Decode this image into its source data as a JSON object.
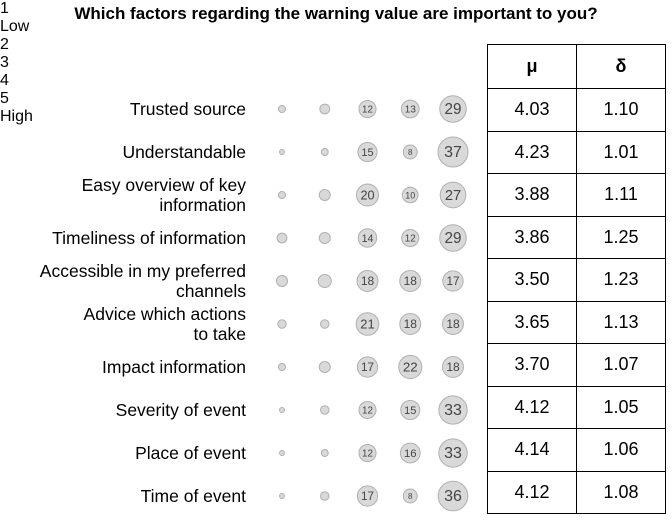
{
  "chart_data": {
    "type": "bubble",
    "title": "Which factors regarding the warning value are important to you?",
    "x": [
      1,
      2,
      3,
      4,
      5
    ],
    "x_sublabels": [
      "Low",
      null,
      null,
      null,
      "High"
    ],
    "series": [
      {
        "name": "Trusted source",
        "values": [
          2,
          4,
          12,
          13,
          29
        ],
        "value_labels": [
          null,
          null,
          "12",
          "13",
          "29"
        ]
      },
      {
        "name": "Understandable",
        "values": [
          1,
          2,
          15,
          8,
          37
        ],
        "value_labels": [
          null,
          null,
          "15",
          "8",
          "37"
        ]
      },
      {
        "name": "Easy overview of key\ninformation",
        "values": [
          2,
          5,
          20,
          10,
          27
        ],
        "value_labels": [
          null,
          null,
          "20",
          "10",
          "27"
        ]
      },
      {
        "name": "Timeliness of information",
        "values": [
          4,
          5,
          14,
          12,
          29
        ],
        "value_labels": [
          null,
          null,
          "14",
          "12",
          "29"
        ]
      },
      {
        "name": "Accessible in my preferred\nchannels",
        "values": [
          5,
          7,
          18,
          18,
          17
        ],
        "value_labels": [
          null,
          null,
          "18",
          "18",
          "17"
        ]
      },
      {
        "name": "Advice which actions\nto take",
        "values": [
          3,
          3,
          21,
          18,
          18
        ],
        "value_labels": [
          null,
          null,
          "21",
          "18",
          "18"
        ]
      },
      {
        "name": "Impact information",
        "values": [
          2,
          5,
          17,
          22,
          18
        ],
        "value_labels": [
          null,
          null,
          "17",
          "22",
          "18"
        ]
      },
      {
        "name": "Severity of event",
        "values": [
          1,
          3,
          12,
          15,
          33
        ],
        "value_labels": [
          null,
          null,
          "12",
          "15",
          "33"
        ]
      },
      {
        "name": "Place of event",
        "values": [
          1,
          2,
          12,
          16,
          33
        ],
        "value_labels": [
          null,
          null,
          "12",
          "16",
          "33"
        ]
      },
      {
        "name": "Time of event",
        "values": [
          1,
          3,
          17,
          8,
          36
        ],
        "value_labels": [
          null,
          null,
          "17",
          "8",
          "36"
        ]
      }
    ],
    "stats_columns": [
      "μ",
      "δ"
    ],
    "stats": [
      [
        "4.03",
        "1.10"
      ],
      [
        "4.23",
        "1.01"
      ],
      [
        "3.88",
        "1.11"
      ],
      [
        "3.86",
        "1.25"
      ],
      [
        "3.50",
        "1.23"
      ],
      [
        "3.65",
        "1.13"
      ],
      [
        "3.70",
        "1.07"
      ],
      [
        "4.12",
        "1.05"
      ],
      [
        "4.14",
        "1.06"
      ],
      [
        "4.12",
        "1.08"
      ]
    ]
  }
}
